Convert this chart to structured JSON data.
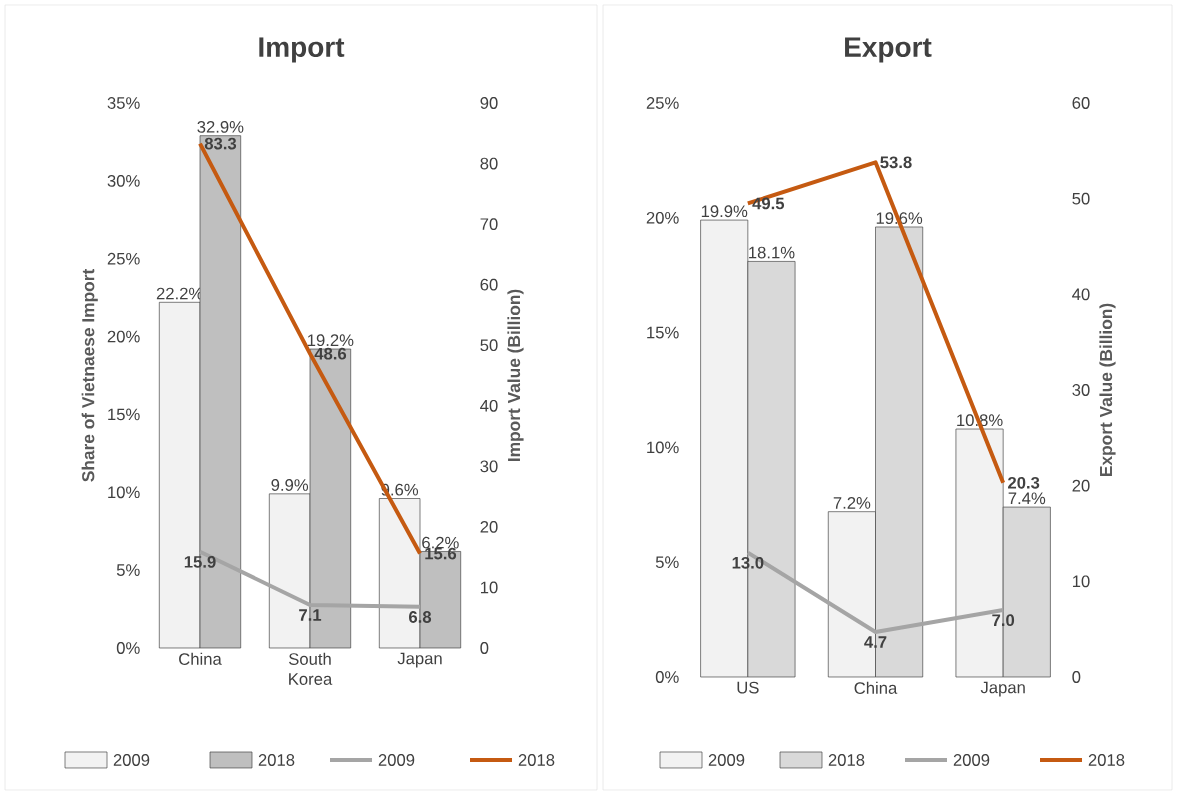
{
  "chart_data": [
    {
      "type": "bar",
      "title": "Import",
      "ylabel": "Share of Vietnaese Import",
      "y2label": "Import Value (Billion)",
      "categories": [
        "China",
        "South Korea",
        "Japan"
      ],
      "series": [
        {
          "name": "2009",
          "color": "#f2f2f2",
          "values": [
            22.2,
            9.9,
            9.6
          ],
          "value_labels": [
            "22.2%",
            "9.9%",
            "9.6%"
          ]
        },
        {
          "name": "2018",
          "color": "#bfbfbf",
          "values": [
            32.9,
            19.2,
            6.2
          ],
          "value_labels": [
            "32.9%",
            "19.2%",
            "6.2%"
          ]
        },
        {
          "name": "2009",
          "type": "line",
          "axis": "y2",
          "color": "#a5a5a5",
          "values": [
            15.9,
            7.1,
            6.8
          ],
          "value_labels": [
            "15.9",
            "7.1",
            "6.8"
          ]
        },
        {
          "name": "2018",
          "type": "line",
          "axis": "y2",
          "color": "#c55a11",
          "values": [
            83.3,
            48.6,
            15.6
          ],
          "value_labels": [
            "83.3",
            "48.6",
            "15.6"
          ]
        }
      ],
      "ylim": [
        0,
        35
      ],
      "yticks": [
        {
          "value": 0,
          "label": "0%"
        },
        {
          "value": 5,
          "label": "5%"
        },
        {
          "value": 10,
          "label": "10%"
        },
        {
          "value": 15,
          "label": "15%"
        },
        {
          "value": 20,
          "label": "20%"
        },
        {
          "value": 25,
          "label": "25%"
        },
        {
          "value": 30,
          "label": "30%"
        },
        {
          "value": 35,
          "label": "35%"
        }
      ],
      "y2lim": [
        0,
        90
      ],
      "y2ticks": [
        0,
        10,
        20,
        30,
        40,
        50,
        60,
        70,
        80,
        90
      ],
      "legend": "bottom",
      "grid": false
    },
    {
      "type": "bar",
      "title": "Export",
      "y2label": "Export Value (Billion)",
      "categories": [
        "US",
        "China",
        "Japan"
      ],
      "series": [
        {
          "name": "2009",
          "color": "#f2f2f2",
          "values": [
            19.9,
            7.2,
            10.8
          ],
          "value_labels": [
            "19.9%",
            "7.2%",
            "10.8%"
          ]
        },
        {
          "name": "2018",
          "color": "#d9d9d9",
          "values": [
            18.1,
            19.6,
            7.4
          ],
          "value_labels": [
            "18.1%",
            "19.6%",
            "7.4%"
          ]
        },
        {
          "name": "2009",
          "type": "line",
          "axis": "y2",
          "color": "#a5a5a5",
          "values": [
            13.0,
            4.7,
            7.0
          ],
          "value_labels": [
            "13.0",
            "4.7",
            "7.0"
          ]
        },
        {
          "name": "2018",
          "type": "line",
          "axis": "y2",
          "color": "#c55a11",
          "values": [
            49.5,
            53.8,
            20.3
          ],
          "value_labels": [
            "49.5",
            "53.8",
            "20.3"
          ]
        }
      ],
      "ylim": [
        0,
        25
      ],
      "yticks": [
        {
          "value": 0,
          "label": "0%"
        },
        {
          "value": 5,
          "label": "5%"
        },
        {
          "value": 10,
          "label": "10%"
        },
        {
          "value": 15,
          "label": "15%"
        },
        {
          "value": 20,
          "label": "20%"
        },
        {
          "value": 25,
          "label": "25%"
        }
      ],
      "y2lim": [
        0,
        60
      ],
      "y2ticks": [
        0,
        10,
        20,
        30,
        40,
        50,
        60
      ],
      "legend": "bottom",
      "grid": false
    }
  ]
}
